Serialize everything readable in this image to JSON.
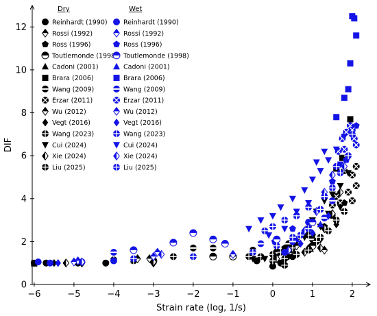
{
  "chart_data": {
    "type": "scatter",
    "xlabel": "Strain rate (log, 1/s)",
    "ylabel": "DIF",
    "xlim": [
      -6.05,
      2.45
    ],
    "ylim": [
      0,
      13
    ],
    "xticks": [
      -6,
      -5,
      -4,
      -3,
      -2,
      -1,
      0,
      1,
      2
    ],
    "yticks": [
      0,
      2,
      4,
      6,
      8,
      10,
      12
    ],
    "xtick_labels": [
      "−6",
      "−5",
      "−4",
      "−3",
      "−2",
      "−1",
      "0",
      "1",
      "2"
    ],
    "ytick_labels": [
      "0",
      "2",
      "4",
      "6",
      "8",
      "10",
      "12"
    ],
    "legend_placement": "top-left",
    "legend_headers": {
      "dry": "Dry",
      "wet": "Wet"
    },
    "colors": {
      "dry": "#000000",
      "wet": "#1414e6"
    },
    "legend_entries": [
      {
        "label": "Reinhardt (1990)",
        "marker": "circle"
      },
      {
        "label": "Rossi (1992)",
        "marker": "diamond-half"
      },
      {
        "label": "Ross (1996)",
        "marker": "pentagon"
      },
      {
        "label": "Toutlemonde (1998)",
        "marker": "circle-half"
      },
      {
        "label": "Cadoni (2001)",
        "marker": "triangle"
      },
      {
        "label": "Brara (2006)",
        "marker": "square"
      },
      {
        "label": "Wang (2009)",
        "marker": "circle-hbar"
      },
      {
        "label": "Erzar (2011)",
        "marker": "circle-x"
      },
      {
        "label": "Wu (2012)",
        "marker": "diamond-half"
      },
      {
        "label": "Vegt (2016)",
        "marker": "diamond"
      },
      {
        "label": "Wang (2023)",
        "marker": "circle-plus"
      },
      {
        "label": "Cui (2024)",
        "marker": "triangle-down"
      },
      {
        "label": "Xie (2024)",
        "marker": "diamond-vhalf"
      },
      {
        "label": "Liu (2025)",
        "marker": "circle-plus"
      }
    ],
    "series": [
      {
        "name": "Reinhardt (1990)",
        "group": "dry",
        "points": [
          [
            -6,
            1.0
          ],
          [
            -5.7,
            1.0
          ],
          [
            -4.9,
            1.0
          ],
          [
            -4.2,
            1.0
          ],
          [
            0.0,
            0.85
          ],
          [
            0.2,
            1.0
          ],
          [
            -0.4,
            1.1
          ],
          [
            0.5,
            1.3
          ]
        ]
      },
      {
        "name": "Reinhardt (1990)",
        "group": "wet",
        "points": [
          [
            -5.9,
            1.05
          ],
          [
            -5.6,
            1.0
          ],
          [
            -4.8,
            1.05
          ],
          [
            -4.0,
            1.1
          ],
          [
            0.3,
            1.5
          ],
          [
            0.9,
            2.9
          ]
        ]
      },
      {
        "name": "Ross (1996)",
        "group": "dry",
        "points": [
          [
            0.3,
            1.7
          ],
          [
            0.5,
            1.9
          ],
          [
            1.0,
            2.3
          ],
          [
            1.3,
            2.7
          ],
          [
            1.5,
            3.2
          ],
          [
            1.8,
            3.8
          ]
        ]
      },
      {
        "name": "Ross (1996)",
        "group": "wet",
        "points": [
          [
            0.05,
            2.0
          ],
          [
            0.5,
            2.6
          ],
          [
            1.5,
            4.8
          ],
          [
            1.85,
            5.8
          ],
          [
            2.1,
            7.4
          ]
        ]
      },
      {
        "name": "Toutlemonde (1998)",
        "group": "dry",
        "points": [
          [
            -3.0,
            1.1
          ],
          [
            -1.5,
            1.3
          ],
          [
            -1.0,
            1.3
          ],
          [
            0.1,
            1.5
          ],
          [
            1.0,
            1.8
          ]
        ]
      },
      {
        "name": "Toutlemonde (1998)",
        "group": "wet",
        "points": [
          [
            -3.5,
            1.6
          ],
          [
            -2.5,
            1.95
          ],
          [
            -2.0,
            2.4
          ],
          [
            -1.5,
            2.1
          ],
          [
            -1.2,
            1.9
          ],
          [
            0.1,
            2.1
          ],
          [
            1.0,
            2.9
          ]
        ]
      },
      {
        "name": "Cadoni (2001)",
        "group": "dry",
        "points": [
          [
            0.5,
            1.6
          ],
          [
            0.95,
            1.65
          ]
        ]
      },
      {
        "name": "Cadoni (2001)",
        "group": "wet",
        "points": [
          [
            0.6,
            2.1
          ],
          [
            1.2,
            2.8
          ]
        ]
      },
      {
        "name": "Brara (2006)",
        "group": "dry",
        "points": [
          [
            -6.0,
            0.98
          ],
          [
            1.6,
            5.4
          ],
          [
            1.75,
            5.9
          ],
          [
            1.95,
            7.7
          ]
        ]
      },
      {
        "name": "Brara (2006)",
        "group": "wet",
        "points": [
          [
            1.6,
            7.8
          ],
          [
            1.8,
            8.7
          ],
          [
            1.9,
            9.1
          ],
          [
            1.95,
            10.3
          ],
          [
            2.0,
            12.5
          ],
          [
            2.05,
            12.4
          ],
          [
            2.1,
            11.6
          ]
        ]
      },
      {
        "name": "Wang (2009)",
        "group": "dry",
        "points": [
          [
            -2.0,
            1.7
          ],
          [
            -1.5,
            1.7
          ],
          [
            -0.5,
            1.6
          ],
          [
            0.4,
            1.9
          ],
          [
            1.0,
            2.1
          ]
        ]
      },
      {
        "name": "Wang (2009)",
        "group": "wet",
        "points": [
          [
            -4.0,
            1.5
          ],
          [
            -0.3,
            1.9
          ],
          [
            0.5,
            2.0
          ],
          [
            1.3,
            3.1
          ],
          [
            1.5,
            3.9
          ]
        ]
      },
      {
        "name": "Erzar (2011)",
        "group": "dry",
        "points": [
          [
            1.5,
            3.7
          ],
          [
            1.6,
            4.1
          ],
          [
            1.7,
            3.8
          ],
          [
            1.8,
            5.3
          ],
          [
            1.9,
            4.3
          ],
          [
            2.0,
            5.1
          ],
          [
            2.1,
            4.6
          ],
          [
            1.85,
            5.9
          ],
          [
            2.0,
            3.9
          ],
          [
            2.1,
            5.5
          ]
        ]
      },
      {
        "name": "Erzar (2011)",
        "group": "wet",
        "points": [
          [
            1.65,
            6.2
          ],
          [
            1.75,
            6.8
          ],
          [
            1.85,
            7.1
          ],
          [
            1.95,
            7.4
          ],
          [
            2.05,
            6.8
          ],
          [
            1.8,
            6.3
          ],
          [
            2.0,
            7.2
          ],
          [
            2.1,
            6.5
          ]
        ]
      },
      {
        "name": "Rossi (1992)",
        "group": "dry",
        "points": [
          [
            -4.8,
            1.0
          ],
          [
            -3.4,
            1.2
          ],
          [
            -3.0,
            1.0
          ],
          [
            1.3,
            1.6
          ]
        ]
      },
      {
        "name": "Rossi (1992)",
        "group": "wet",
        "points": [
          [
            -4.9,
            1.1
          ],
          [
            -3.0,
            1.3
          ],
          [
            -1.0,
            1.4
          ]
        ]
      },
      {
        "name": "Wu (2012)",
        "group": "dry",
        "points": [
          [
            -3.1,
            1.2
          ],
          [
            0.6,
            1.8
          ]
        ]
      },
      {
        "name": "Wu (2012)",
        "group": "wet",
        "points": [
          [
            -5.0,
            1.05
          ],
          [
            -2.9,
            1.5
          ]
        ]
      },
      {
        "name": "Vegt (2016)",
        "group": "dry",
        "points": [
          [
            -5.5,
            1.0
          ],
          [
            0.4,
            1.3
          ],
          [
            0.9,
            1.7
          ],
          [
            1.2,
            2.1
          ],
          [
            1.6,
            2.8
          ]
        ]
      },
      {
        "name": "Vegt (2016)",
        "group": "wet",
        "points": [
          [
            -5.4,
            1.0
          ],
          [
            0.7,
            1.9
          ],
          [
            1.0,
            2.4
          ],
          [
            1.4,
            3.2
          ]
        ]
      },
      {
        "name": "Wang (2023)",
        "group": "dry",
        "points": [
          [
            -0.3,
            1.3
          ],
          [
            0.0,
            1.4
          ],
          [
            0.2,
            1.5
          ],
          [
            0.5,
            1.7
          ],
          [
            0.9,
            2.3
          ]
        ]
      },
      {
        "name": "Wang (2023)",
        "group": "wet",
        "points": [
          [
            -0.2,
            2.5
          ],
          [
            0.0,
            2.7
          ],
          [
            0.3,
            3.0
          ],
          [
            0.6,
            3.2
          ],
          [
            0.9,
            3.6
          ]
        ]
      },
      {
        "name": "Cui (2024)",
        "group": "dry",
        "points": [
          [
            -0.5,
            1.2
          ],
          [
            -0.2,
            1.2
          ],
          [
            0.1,
            1.3
          ],
          [
            0.3,
            1.5
          ],
          [
            0.6,
            2.0
          ],
          [
            0.9,
            2.6
          ],
          [
            1.0,
            3.0
          ],
          [
            1.1,
            3.4
          ],
          [
            1.3,
            3.9
          ],
          [
            1.5,
            4.2
          ],
          [
            1.7,
            4.6
          ],
          [
            1.9,
            5.2
          ],
          [
            1.7,
            3.6
          ],
          [
            1.4,
            3.3
          ],
          [
            1.2,
            2.7
          ],
          [
            0.8,
            2.2
          ]
        ]
      },
      {
        "name": "Cui (2024)",
        "group": "wet",
        "points": [
          [
            -0.6,
            2.6
          ],
          [
            -0.3,
            3.0
          ],
          [
            0.0,
            3.2
          ],
          [
            0.2,
            3.6
          ],
          [
            0.5,
            4.0
          ],
          [
            0.8,
            4.4
          ],
          [
            1.0,
            4.9
          ],
          [
            1.2,
            5.3
          ],
          [
            1.4,
            5.8
          ],
          [
            1.6,
            6.3
          ],
          [
            1.8,
            6.9
          ],
          [
            1.3,
            6.2
          ],
          [
            1.1,
            5.7
          ],
          [
            0.9,
            3.8
          ],
          [
            0.6,
            3.4
          ],
          [
            0.3,
            2.6
          ],
          [
            -0.1,
            2.3
          ],
          [
            1.7,
            5.6
          ]
        ]
      },
      {
        "name": "Xie (2024)",
        "group": "dry",
        "points": [
          [
            -5.2,
            1.0
          ],
          [
            -3.0,
            1.05
          ],
          [
            0.1,
            1.2
          ],
          [
            0.8,
            1.5
          ],
          [
            1.2,
            1.7
          ],
          [
            1.3,
            2.6
          ],
          [
            1.5,
            3.3
          ],
          [
            1.7,
            4.3
          ]
        ]
      },
      {
        "name": "Xie (2024)",
        "group": "wet",
        "points": [
          [
            -4.8,
            1.05
          ],
          [
            -2.8,
            1.4
          ],
          [
            0.4,
            1.6
          ],
          [
            0.8,
            2.5
          ],
          [
            1.1,
            3.4
          ],
          [
            1.3,
            4.3
          ],
          [
            1.5,
            5.1
          ],
          [
            1.8,
            5.5
          ]
        ]
      },
      {
        "name": "Liu (2025)",
        "group": "dry",
        "points": [
          [
            -4.0,
            1.15
          ],
          [
            -3.5,
            1.1
          ],
          [
            -2.5,
            1.3
          ],
          [
            -0.6,
            1.3
          ],
          [
            0.0,
            1.1
          ],
          [
            0.3,
            1.2
          ],
          [
            0.6,
            1.4
          ],
          [
            0.9,
            1.6
          ],
          [
            1.2,
            2.2
          ],
          [
            1.4,
            2.5
          ],
          [
            1.6,
            3.0
          ],
          [
            1.8,
            3.4
          ],
          [
            1.1,
            2.0
          ],
          [
            0.3,
            0.9
          ]
        ]
      },
      {
        "name": "Liu (2025)",
        "group": "wet",
        "points": [
          [
            -3.5,
            1.2
          ],
          [
            -2.0,
            1.3
          ],
          [
            -0.5,
            1.5
          ],
          [
            0.1,
            1.8
          ],
          [
            0.5,
            2.2
          ],
          [
            0.9,
            2.6
          ],
          [
            1.2,
            3.5
          ],
          [
            1.5,
            4.5
          ],
          [
            1.7,
            5.2
          ],
          [
            1.9,
            6.0
          ],
          [
            2.0,
            7.0
          ],
          [
            1.6,
            5.5
          ],
          [
            1.3,
            4.1
          ],
          [
            0.7,
            2.3
          ]
        ]
      }
    ]
  }
}
